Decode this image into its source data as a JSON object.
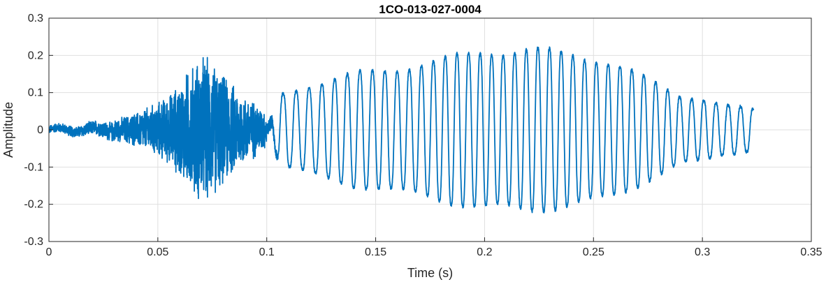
{
  "chart_data": {
    "type": "line",
    "title": "1CO-013-027-0004",
    "xlabel": "Time (s)",
    "ylabel": "Amplitude",
    "xlim": [
      0,
      0.35
    ],
    "ylim": [
      -0.3,
      0.3
    ],
    "x_ticks": [
      0,
      0.05,
      0.1,
      0.15,
      0.2,
      0.25,
      0.3,
      0.35
    ],
    "x_tick_labels": [
      "0",
      "0.05",
      "0.1",
      "0.15",
      "0.2",
      "0.25",
      "0.3",
      "0.35"
    ],
    "y_ticks": [
      -0.3,
      -0.2,
      -0.1,
      0,
      0.1,
      0.2,
      0.3
    ],
    "y_tick_labels": [
      "-0.3",
      "-0.2",
      "-0.1",
      "0",
      "0.1",
      "0.2",
      "0.3"
    ],
    "grid": true,
    "legend": false,
    "series_color": "#0072BD",
    "series": [
      {
        "x_start": 0,
        "x_end": 0.3235,
        "envelope": {
          "t": [
            0,
            0.01,
            0.02,
            0.03,
            0.04,
            0.05,
            0.055,
            0.06,
            0.065,
            0.07,
            0.075,
            0.08,
            0.085,
            0.09,
            0.095,
            0.1,
            0.105,
            0.12,
            0.14,
            0.16,
            0.18,
            0.2,
            0.22,
            0.24,
            0.25,
            0.26,
            0.27,
            0.28,
            0.29,
            0.3,
            0.31,
            0.3235
          ],
          "amp": [
            0.012,
            0.015,
            0.02,
            0.03,
            0.05,
            0.08,
            0.1,
            0.14,
            0.18,
            0.22,
            0.2,
            0.16,
            0.13,
            0.1,
            0.08,
            0.05,
            0.1,
            0.13,
            0.16,
            0.18,
            0.2,
            0.23,
            0.23,
            0.22,
            0.21,
            0.19,
            0.16,
            0.13,
            0.1,
            0.09,
            0.07,
            0.06
          ]
        },
        "noise_region": [
          0,
          0.1
        ],
        "tone_region": [
          0.1,
          0.3235
        ],
        "tone_frequency_hz": {
          "t": [
            0.1,
            0.15,
            0.2,
            0.25,
            0.3,
            0.3235
          ],
          "f": [
            165,
            175,
            190,
            185,
            180,
            175
          ]
        }
      }
    ]
  }
}
